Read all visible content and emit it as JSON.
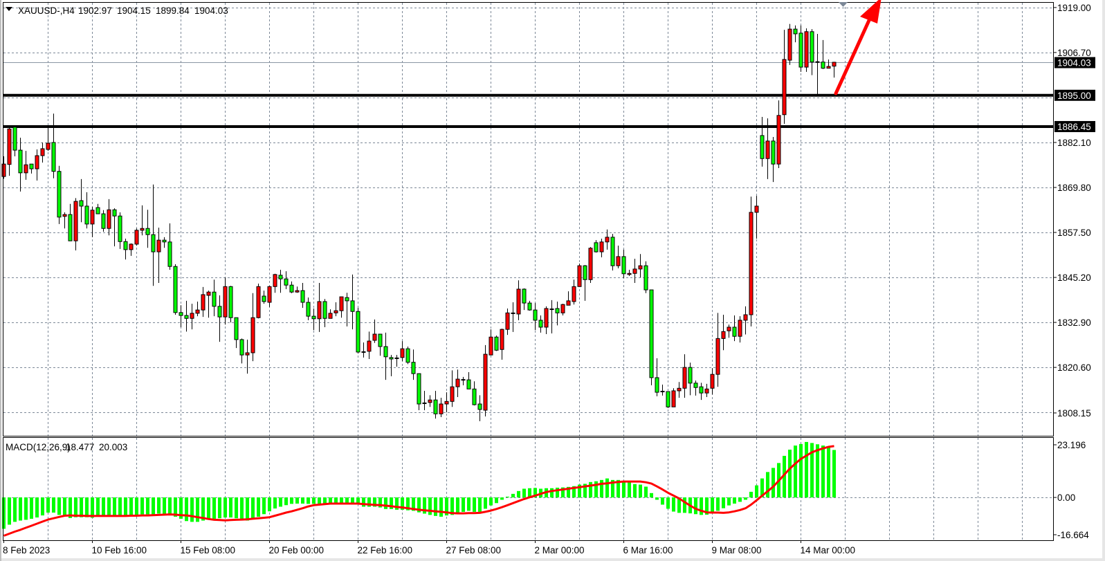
{
  "header": {
    "symbol_timeframe": "XAUUSD-,H4",
    "ohlc": [
      "1902.97",
      "1904.15",
      "1899.84",
      "1904.03"
    ]
  },
  "colors": {
    "bull_candle": "#ff0000",
    "bear_candle": "#00ff00",
    "macd_histogram": "#00ff00",
    "macd_signal": "#ff0000",
    "level_lines": "#000000",
    "arrow": "#ff0000",
    "grid": "#7b8796"
  },
  "icons": {
    "menu_triangle": "triangle-down-icon",
    "shift_marker": "chart-shift-marker-icon",
    "arrow": "red-up-arrow-icon"
  },
  "chart_data": {
    "type": "candlestick",
    "symbol": "XAUUSD-",
    "timeframe": "H4",
    "ylim": [
      1801.9,
      1920.3
    ],
    "grid": true,
    "price_axis": {
      "ticks": [
        "1919.00",
        "1906.70",
        "1882.10",
        "1869.80",
        "1857.50",
        "1845.20",
        "1832.90",
        "1820.60",
        "1808.15"
      ]
    },
    "current_price": {
      "value": 1904.03,
      "label": "1904.03"
    },
    "levels": [
      {
        "price": 1895.0,
        "label": "1895.00"
      },
      {
        "price": 1886.45,
        "label": "1886.45"
      }
    ],
    "annotation": {
      "type": "arrow",
      "direction": "up",
      "color": "#ff0000"
    },
    "time_axis": [
      "8 Feb 2023",
      "10 Feb 16:00",
      "15 Feb 08:00",
      "20 Feb 00:00",
      "22 Feb 16:00",
      "27 Feb 08:00",
      "2 Mar 00:00",
      "6 Mar 16:00",
      "9 Mar 08:00",
      "14 Mar 00:00"
    ],
    "candles_ohlc": [
      [
        1872.8,
        1878.3,
        1872.2,
        1876.2
      ],
      [
        1876.1,
        1886.5,
        1873.0,
        1885.8
      ],
      [
        1886.3,
        1886.3,
        1878.3,
        1880.0
      ],
      [
        1880.0,
        1883.4,
        1868.7,
        1873.8
      ],
      [
        1873.8,
        1879.8,
        1871.9,
        1876.0
      ],
      [
        1876.2,
        1876.2,
        1873.6,
        1874.9
      ],
      [
        1874.9,
        1880.2,
        1871.7,
        1878.5
      ],
      [
        1878.5,
        1882.1,
        1876.6,
        1880.4
      ],
      [
        1880.2,
        1886.1,
        1879.8,
        1881.9
      ],
      [
        1882.1,
        1890.0,
        1872.3,
        1874.2
      ],
      [
        1874.2,
        1875.7,
        1859.8,
        1861.7
      ],
      [
        1861.9,
        1863.0,
        1858.6,
        1862.4
      ],
      [
        1862.4,
        1865.3,
        1855.2,
        1855.2
      ],
      [
        1855.2,
        1866.9,
        1852.6,
        1866.0
      ],
      [
        1866.2,
        1872.1,
        1860.3,
        1864.7
      ],
      [
        1864.7,
        1868.5,
        1858.6,
        1859.8
      ],
      [
        1859.8,
        1864.5,
        1856.2,
        1863.6
      ],
      [
        1864.3,
        1865.3,
        1862.6,
        1862.6
      ],
      [
        1862.6,
        1863.6,
        1857.7,
        1858.6
      ],
      [
        1858.6,
        1866.6,
        1856.7,
        1863.7
      ],
      [
        1863.7,
        1864.1,
        1853.7,
        1862.0
      ],
      [
        1862.0,
        1863.0,
        1853.0,
        1855.0
      ],
      [
        1855.0,
        1855.8,
        1850.1,
        1852.8
      ],
      [
        1852.8,
        1854.5,
        1851.1,
        1854.3
      ],
      [
        1854.3,
        1858.6,
        1853.9,
        1858.1
      ],
      [
        1858.1,
        1864.9,
        1856.7,
        1858.6
      ],
      [
        1858.6,
        1863.7,
        1853.3,
        1856.9
      ],
      [
        1856.9,
        1870.6,
        1842.9,
        1852.2
      ],
      [
        1852.2,
        1858.8,
        1843.7,
        1855.4
      ],
      [
        1855.4,
        1856.2,
        1853.3,
        1854.9
      ],
      [
        1854.9,
        1860.0,
        1847.3,
        1848.2
      ],
      [
        1848.2,
        1848.8,
        1835.0,
        1835.6
      ],
      [
        1835.6,
        1837.6,
        1831.6,
        1834.8
      ],
      [
        1834.8,
        1838.8,
        1830.4,
        1834.0
      ],
      [
        1834.0,
        1838.0,
        1831.0,
        1835.4
      ],
      [
        1835.4,
        1838.6,
        1834.6,
        1836.3
      ],
      [
        1836.3,
        1842.6,
        1834.4,
        1840.5
      ],
      [
        1840.3,
        1841.6,
        1834.2,
        1841.2
      ],
      [
        1841.2,
        1844.6,
        1834.6,
        1837.3
      ],
      [
        1837.3,
        1840.3,
        1827.6,
        1834.4
      ],
      [
        1834.4,
        1845.2,
        1832.3,
        1842.7
      ],
      [
        1842.7,
        1842.9,
        1832.9,
        1834.2
      ],
      [
        1834.2,
        1834.2,
        1825.9,
        1828.2
      ],
      [
        1828.2,
        1828.5,
        1821.7,
        1824.0
      ],
      [
        1824.0,
        1828.2,
        1818.9,
        1824.6
      ],
      [
        1824.6,
        1840.9,
        1822.3,
        1834.2
      ],
      [
        1834.2,
        1843.5,
        1834.0,
        1842.7
      ],
      [
        1840.1,
        1841.6,
        1838.0,
        1838.6
      ],
      [
        1838.4,
        1842.9,
        1837.1,
        1842.7
      ],
      [
        1842.7,
        1846.2,
        1841.0,
        1846.0
      ],
      [
        1845.8,
        1847.3,
        1841.0,
        1844.8
      ],
      [
        1844.8,
        1846.9,
        1842.0,
        1843.1
      ],
      [
        1843.1,
        1844.1,
        1840.9,
        1841.2
      ],
      [
        1841.2,
        1842.7,
        1841.0,
        1841.6
      ],
      [
        1841.6,
        1843.7,
        1836.9,
        1838.4
      ],
      [
        1838.4,
        1839.7,
        1833.5,
        1834.6
      ],
      [
        1834.6,
        1836.7,
        1830.8,
        1833.9
      ],
      [
        1833.9,
        1843.7,
        1830.3,
        1838.6
      ],
      [
        1838.6,
        1839.3,
        1831.6,
        1834.0
      ],
      [
        1834.0,
        1836.5,
        1834.0,
        1835.4
      ],
      [
        1835.5,
        1838.4,
        1834.6,
        1836.1
      ],
      [
        1836.1,
        1839.9,
        1834.2,
        1839.9
      ],
      [
        1839.7,
        1841.0,
        1831.8,
        1838.8
      ],
      [
        1838.8,
        1846.0,
        1831.0,
        1835.9
      ],
      [
        1835.9,
        1836.9,
        1824.4,
        1824.8
      ],
      [
        1824.8,
        1827.4,
        1823.3,
        1824.8
      ],
      [
        1825.0,
        1830.4,
        1822.9,
        1827.8
      ],
      [
        1828.0,
        1833.7,
        1827.3,
        1829.7
      ],
      [
        1829.7,
        1829.7,
        1823.8,
        1826.3
      ],
      [
        1826.3,
        1830.1,
        1817.2,
        1823.5
      ],
      [
        1823.3,
        1824.0,
        1818.2,
        1822.9
      ],
      [
        1823.1,
        1824.0,
        1820.8,
        1823.1
      ],
      [
        1823.3,
        1827.8,
        1822.3,
        1825.7
      ],
      [
        1825.7,
        1826.3,
        1821.5,
        1822.0
      ],
      [
        1822.0,
        1825.5,
        1817.2,
        1818.9
      ],
      [
        1818.9,
        1818.9,
        1808.9,
        1810.6
      ],
      [
        1810.8,
        1814.2,
        1808.9,
        1810.8
      ],
      [
        1811.0,
        1813.0,
        1809.8,
        1811.7
      ],
      [
        1811.7,
        1814.2,
        1806.6,
        1807.9
      ],
      [
        1807.9,
        1812.3,
        1807.0,
        1810.6
      ],
      [
        1810.6,
        1813.8,
        1808.3,
        1811.3
      ],
      [
        1811.3,
        1819.8,
        1809.8,
        1815.3
      ],
      [
        1815.3,
        1820.0,
        1812.5,
        1817.4
      ],
      [
        1817.2,
        1818.0,
        1815.7,
        1817.2
      ],
      [
        1817.2,
        1819.3,
        1814.7,
        1814.7
      ],
      [
        1814.7,
        1816.8,
        1810.2,
        1810.4
      ],
      [
        1810.6,
        1813.0,
        1805.9,
        1809.1
      ],
      [
        1808.9,
        1826.7,
        1807.2,
        1824.2
      ],
      [
        1824.0,
        1831.0,
        1824.0,
        1828.9
      ],
      [
        1828.9,
        1829.3,
        1825.1,
        1825.3
      ],
      [
        1825.5,
        1831.2,
        1822.7,
        1831.0
      ],
      [
        1831.0,
        1836.7,
        1829.5,
        1835.5
      ],
      [
        1835.4,
        1838.4,
        1830.3,
        1835.4
      ],
      [
        1835.2,
        1844.4,
        1833.5,
        1842.0
      ],
      [
        1842.0,
        1842.2,
        1836.3,
        1838.2
      ],
      [
        1838.2,
        1838.8,
        1836.1,
        1836.3
      ],
      [
        1836.3,
        1838.2,
        1830.8,
        1833.5
      ],
      [
        1833.5,
        1834.8,
        1830.1,
        1831.6
      ],
      [
        1831.6,
        1837.3,
        1829.7,
        1836.7
      ],
      [
        1836.5,
        1839.0,
        1829.9,
        1836.5
      ],
      [
        1836.7,
        1838.6,
        1832.1,
        1835.5
      ],
      [
        1835.5,
        1838.0,
        1834.8,
        1837.8
      ],
      [
        1837.6,
        1841.4,
        1837.6,
        1838.8
      ],
      [
        1838.6,
        1844.6,
        1837.8,
        1842.7
      ],
      [
        1842.7,
        1849.0,
        1842.7,
        1848.4
      ],
      [
        1848.4,
        1848.6,
        1838.8,
        1844.6
      ],
      [
        1844.6,
        1853.5,
        1843.7,
        1853.2
      ],
      [
        1854.7,
        1855.4,
        1852.0,
        1852.2
      ],
      [
        1852.2,
        1855.8,
        1850.7,
        1854.9
      ],
      [
        1854.9,
        1858.3,
        1852.8,
        1856.2
      ],
      [
        1856.2,
        1857.1,
        1847.1,
        1848.4
      ],
      [
        1848.4,
        1853.9,
        1847.7,
        1850.9
      ],
      [
        1850.9,
        1852.8,
        1845.0,
        1846.2
      ],
      [
        1846.0,
        1847.3,
        1845.6,
        1846.3
      ],
      [
        1846.3,
        1850.3,
        1843.7,
        1847.5
      ],
      [
        1847.5,
        1851.6,
        1845.2,
        1848.4
      ],
      [
        1848.4,
        1849.6,
        1840.9,
        1841.8
      ],
      [
        1841.8,
        1841.8,
        1815.7,
        1817.8
      ],
      [
        1817.8,
        1823.1,
        1812.7,
        1813.8
      ],
      [
        1814.0,
        1815.9,
        1812.9,
        1814.0
      ],
      [
        1814.0,
        1814.0,
        1809.5,
        1809.8
      ],
      [
        1809.8,
        1814.9,
        1809.8,
        1814.2
      ],
      [
        1814.2,
        1816.6,
        1812.3,
        1814.9
      ],
      [
        1814.9,
        1824.2,
        1812.3,
        1820.6
      ],
      [
        1820.6,
        1821.9,
        1813.0,
        1816.3
      ],
      [
        1816.3,
        1817.0,
        1812.9,
        1815.1
      ],
      [
        1815.3,
        1816.4,
        1811.7,
        1813.6
      ],
      [
        1813.6,
        1816.1,
        1812.5,
        1814.7
      ],
      [
        1814.9,
        1820.4,
        1813.2,
        1818.7
      ],
      [
        1818.7,
        1835.5,
        1815.3,
        1828.5
      ],
      [
        1828.5,
        1835.0,
        1825.3,
        1830.4
      ],
      [
        1830.6,
        1832.3,
        1828.7,
        1831.6
      ],
      [
        1831.6,
        1834.8,
        1827.8,
        1829.1
      ],
      [
        1829.1,
        1834.6,
        1827.4,
        1833.5
      ],
      [
        1833.5,
        1837.3,
        1829.6,
        1835.0
      ],
      [
        1835.0,
        1867.3,
        1831.8,
        1863.0
      ],
      [
        1863.0,
        1867.5,
        1855.8,
        1864.7
      ],
      [
        1884.0,
        1889.1,
        1875.5,
        1877.7
      ],
      [
        1877.7,
        1888.7,
        1872.1,
        1882.5
      ],
      [
        1882.5,
        1883.6,
        1871.3,
        1876.2
      ],
      [
        1876.2,
        1893.6,
        1875.1,
        1889.5
      ],
      [
        1889.7,
        1912.9,
        1887.2,
        1904.8
      ],
      [
        1904.6,
        1914.5,
        1903.3,
        1913.1
      ],
      [
        1913.1,
        1914.1,
        1909.5,
        1911.8
      ],
      [
        1912.0,
        1914.1,
        1901.4,
        1902.7
      ],
      [
        1902.7,
        1913.3,
        1901.4,
        1912.4
      ],
      [
        1912.4,
        1913.1,
        1900.5,
        1904.1
      ],
      [
        1904.1,
        1911.8,
        1895.2,
        1904.1
      ],
      [
        1904.1,
        1910.1,
        1902.2,
        1902.4
      ],
      [
        1902.4,
        1904.8,
        1902.4,
        1902.9
      ],
      [
        1902.97,
        1904.15,
        1899.84,
        1904.03
      ]
    ],
    "macd": {
      "label": "MACD(12,26,9)",
      "main_value": "18.477",
      "signal_value": "20.003",
      "ylim": [
        -16.664,
        23.196
      ],
      "axis_ticks": [
        "23.196",
        "0.00",
        "-16.664"
      ],
      "histogram": [
        -12.2,
        -10.6,
        -9.5,
        -9.0,
        -8.7,
        -8.3,
        -7.8,
        -7.0,
        -5.9,
        -5.9,
        -6.8,
        -7.2,
        -8.0,
        -7.7,
        -7.7,
        -7.7,
        -7.9,
        -7.0,
        -7.0,
        -7.0,
        -7.0,
        -7.0,
        -7.0,
        -7.0,
        -7.0,
        -6.6,
        -6.6,
        -6.6,
        -6.3,
        -6.5,
        -7.0,
        -7.5,
        -8.3,
        -9.2,
        -9.5,
        -9.5,
        -9.0,
        -8.6,
        -8.3,
        -8.1,
        -7.8,
        -7.8,
        -8.1,
        -8.3,
        -9.0,
        -8.6,
        -7.5,
        -6.5,
        -5.4,
        -4.3,
        -3.6,
        -3.0,
        -2.5,
        -2.4,
        -2.4,
        -2.5,
        -2.5,
        -2.4,
        -2.4,
        -2.4,
        -2.4,
        -2.4,
        -2.4,
        -2.4,
        -2.4,
        -3.6,
        -3.6,
        -3.6,
        -3.9,
        -4.5,
        -4.5,
        -4.8,
        -4.8,
        -5.0,
        -5.2,
        -5.8,
        -6.3,
        -6.8,
        -7.2,
        -7.5,
        -7.0,
        -6.8,
        -6.3,
        -5.6,
        -5.2,
        -5.6,
        -5.6,
        -4.4,
        -3.1,
        -2.2,
        -0.9,
        0.3,
        1.4,
        2.5,
        3.4,
        3.6,
        3.7,
        3.4,
        3.6,
        3.6,
        3.8,
        3.9,
        4.1,
        4.4,
        5.0,
        5.3,
        6.0,
        6.3,
        6.8,
        7.4,
        6.8,
        6.8,
        6.0,
        5.9,
        5.2,
        5.0,
        4.2,
        1.7,
        -0.9,
        -2.8,
        -4.4,
        -5.5,
        -6.0,
        -6.0,
        -6.2,
        -6.5,
        -6.8,
        -6.7,
        -6.2,
        -5.2,
        -4.2,
        -3.1,
        -2.4,
        -1.7,
        -0.9,
        2.2,
        4.7,
        7.4,
        9.9,
        11.5,
        13.4,
        16.2,
        18.6,
        20.2,
        20.8,
        21.6,
        21.2,
        20.7,
        20.2,
        19.6,
        18.477
      ],
      "signal": [
        -14.9,
        -14.1,
        -13.3,
        -12.6,
        -11.8,
        -11.0,
        -10.2,
        -9.4,
        -8.6,
        -8.1,
        -7.6,
        -7.1,
        -7.0,
        -7.1,
        -7.1,
        -7.2,
        -7.2,
        -7.2,
        -7.2,
        -7.2,
        -7.2,
        -7.2,
        -7.2,
        -7.1,
        -7.1,
        -7.0,
        -7.0,
        -6.9,
        -6.8,
        -6.7,
        -6.6,
        -6.7,
        -6.9,
        -7.0,
        -7.3,
        -7.7,
        -8.0,
        -8.4,
        -8.7,
        -8.8,
        -8.9,
        -8.8,
        -8.7,
        -8.6,
        -8.5,
        -8.3,
        -8.1,
        -7.9,
        -7.7,
        -7.1,
        -6.5,
        -5.9,
        -5.4,
        -4.8,
        -4.2,
        -3.5,
        -3.0,
        -2.8,
        -2.6,
        -2.4,
        -2.4,
        -2.4,
        -2.4,
        -2.4,
        -2.4,
        -2.6,
        -2.7,
        -2.9,
        -3.0,
        -3.2,
        -3.4,
        -3.7,
        -3.9,
        -4.2,
        -4.5,
        -4.8,
        -5.0,
        -5.2,
        -5.4,
        -5.6,
        -5.8,
        -6.1,
        -6.2,
        -6.2,
        -6.1,
        -6.1,
        -6.0,
        -5.6,
        -5.1,
        -4.5,
        -3.8,
        -3.0,
        -2.2,
        -1.4,
        -0.6,
        0.1,
        0.7,
        1.4,
        2.1,
        2.5,
        2.8,
        3.1,
        3.4,
        3.7,
        4.0,
        4.3,
        4.6,
        4.9,
        5.3,
        5.5,
        5.8,
        6.0,
        6.2,
        6.2,
        6.2,
        6.2,
        5.9,
        5.4,
        4.3,
        3.1,
        1.8,
        0.7,
        -0.4,
        -1.8,
        -3.2,
        -4.4,
        -5.2,
        -5.8,
        -5.9,
        -5.9,
        -6.0,
        -5.8,
        -5.4,
        -4.9,
        -4.2,
        -2.8,
        -1.1,
        0.7,
        2.4,
        4.2,
        6.5,
        8.9,
        11.2,
        13.2,
        15.0,
        16.3,
        17.6,
        18.4,
        19.1,
        19.7,
        20.003
      ]
    }
  }
}
